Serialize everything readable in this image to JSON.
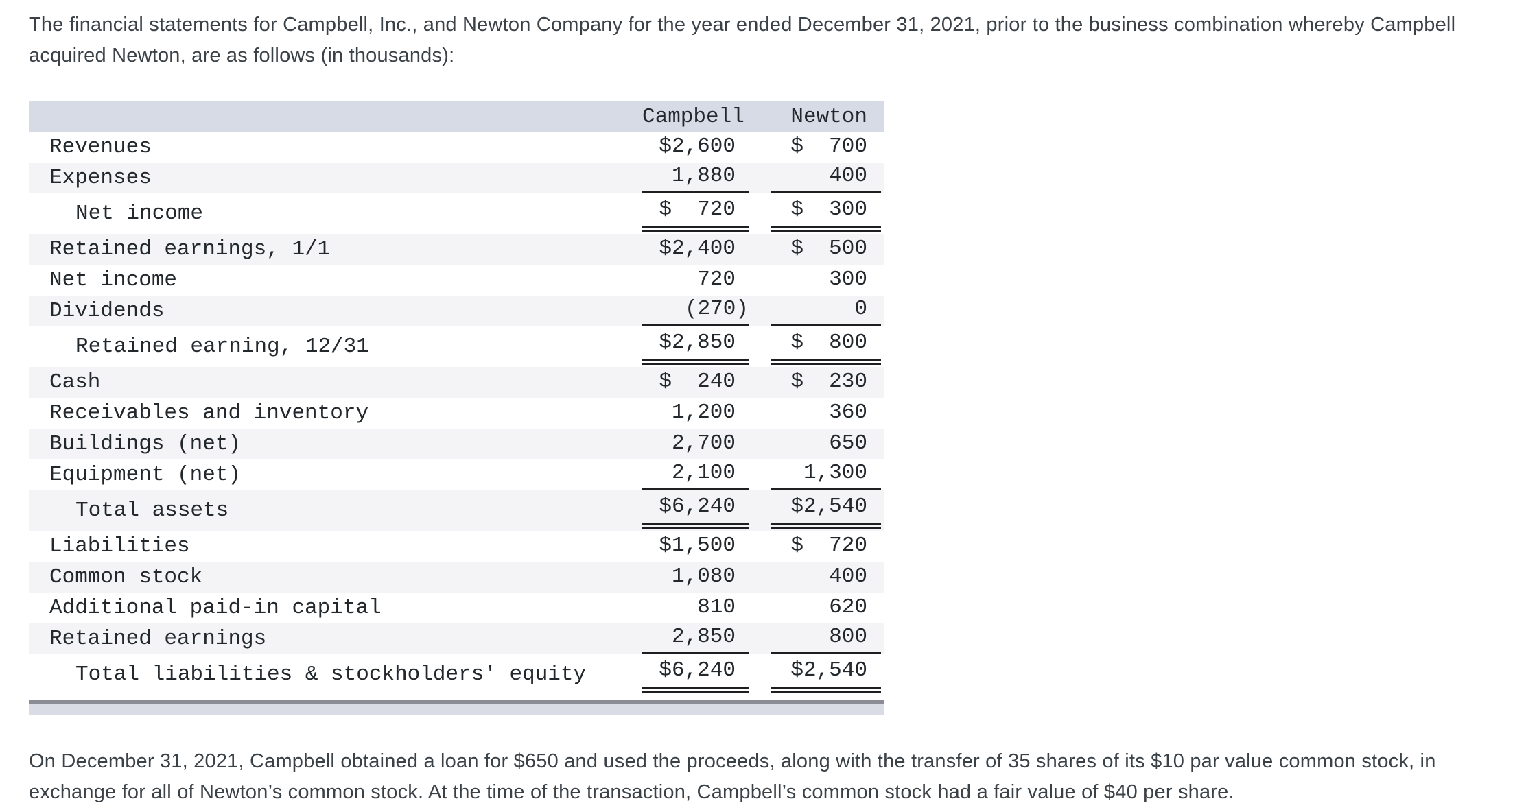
{
  "intro": {
    "text": "The financial statements for Campbell, Inc., and Newton Company for the year ended December 31, 2021, prior to the business combination whereby Campbell acquired Newton, are as follows (in thousands):"
  },
  "table": {
    "headers": {
      "campbell": "Campbell",
      "newton": "Newton"
    },
    "rows": [
      {
        "label": "Revenues",
        "indent": false,
        "campbell": "$2,600",
        "newton": "$  700",
        "shade": false,
        "rule": "none",
        "hang_campbell": false
      },
      {
        "label": "Expenses",
        "indent": false,
        "campbell": "1,880",
        "newton": "400",
        "shade": true,
        "rule": "single",
        "hang_campbell": false
      },
      {
        "label": "Net income",
        "indent": true,
        "campbell": "$  720",
        "newton": "$  300",
        "shade": false,
        "rule": "double",
        "hang_campbell": false
      },
      {
        "label": "Retained earnings, 1/1",
        "indent": false,
        "campbell": "$2,400",
        "newton": "$  500",
        "shade": true,
        "rule": "none",
        "hang_campbell": false
      },
      {
        "label": "Net income",
        "indent": false,
        "campbell": "720",
        "newton": "300",
        "shade": false,
        "rule": "none",
        "hang_campbell": false
      },
      {
        "label": "Dividends",
        "indent": false,
        "campbell": "(270)",
        "newton": "0",
        "shade": true,
        "rule": "single",
        "hang_campbell": true
      },
      {
        "label": "Retained earning, 12/31",
        "indent": true,
        "campbell": "$2,850",
        "newton": "$  800",
        "shade": false,
        "rule": "double",
        "hang_campbell": false
      },
      {
        "label": "Cash",
        "indent": false,
        "campbell": "$  240",
        "newton": "$  230",
        "shade": true,
        "rule": "none",
        "hang_campbell": false
      },
      {
        "label": "Receivables and inventory",
        "indent": false,
        "campbell": "1,200",
        "newton": "360",
        "shade": false,
        "rule": "none",
        "hang_campbell": false
      },
      {
        "label": "Buildings (net)",
        "indent": false,
        "campbell": "2,700",
        "newton": "650",
        "shade": true,
        "rule": "none",
        "hang_campbell": false
      },
      {
        "label": "Equipment (net)",
        "indent": false,
        "campbell": "2,100",
        "newton": "1,300",
        "shade": false,
        "rule": "single",
        "hang_campbell": false
      },
      {
        "label": "Total assets",
        "indent": true,
        "campbell": "$6,240",
        "newton": "$2,540",
        "shade": true,
        "rule": "double",
        "hang_campbell": false
      },
      {
        "label": "Liabilities",
        "indent": false,
        "campbell": "$1,500",
        "newton": "$  720",
        "shade": false,
        "rule": "none",
        "hang_campbell": false
      },
      {
        "label": "Common stock",
        "indent": false,
        "campbell": "1,080",
        "newton": "400",
        "shade": true,
        "rule": "none",
        "hang_campbell": false
      },
      {
        "label": "Additional paid-in capital",
        "indent": false,
        "campbell": "810",
        "newton": "620",
        "shade": false,
        "rule": "none",
        "hang_campbell": false
      },
      {
        "label": "Retained earnings",
        "indent": false,
        "campbell": "2,850",
        "newton": "800",
        "shade": true,
        "rule": "single",
        "hang_campbell": false
      },
      {
        "label": "Total liabilities & stockholders' equity",
        "indent": true,
        "campbell": "$6,240",
        "newton": "$2,540",
        "shade": false,
        "rule": "double",
        "hang_campbell": false
      }
    ]
  },
  "footnote": {
    "text": "On December 31, 2021, Campbell obtained a loan for $650 and used the proceeds, along with the transfer of 35 shares of its $10 par value common stock, in exchange for all of Newton’s common stock. At the time of the transaction, Campbell’s common stock had a fair value of $40 per share."
  },
  "colors": {
    "header_bg": "#d7dbe6",
    "row_alt_bg": "#f4f4f6",
    "rule_color": "#1d1f21",
    "scrollbar_track": "#d9dce5",
    "scrollbar_thumb": "#8a8c96",
    "table_text": "#23282d",
    "body_text": "#3a4147"
  }
}
